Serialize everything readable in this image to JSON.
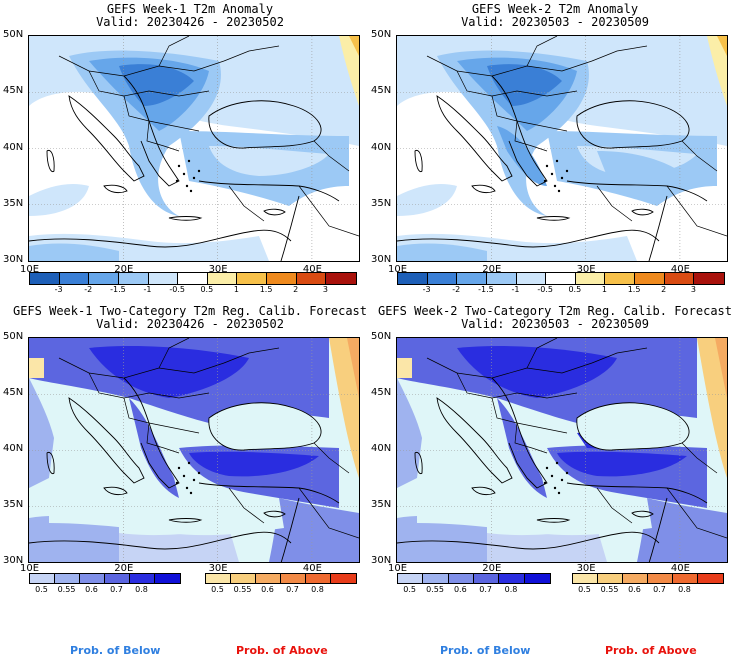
{
  "panels": [
    {
      "title": "GEFS Week-1 T2m Anomaly",
      "valid": "Valid: 20230426 - 20230502",
      "kind": "anomaly"
    },
    {
      "title": "GEFS Week-2 T2m Anomaly",
      "valid": "Valid: 20230503 - 20230509",
      "kind": "anomaly"
    },
    {
      "title": "GEFS Week-1 Two-Category T2m Reg. Calib. Forecast",
      "valid": "Valid: 20230426 - 20230502",
      "kind": "prob"
    },
    {
      "title": "GEFS Week-2 Two-Category T2m Reg. Calib. Forecast",
      "valid": "Valid: 20230503 - 20230509",
      "kind": "prob"
    }
  ],
  "lat_labels": [
    "50N",
    "45N",
    "40N",
    "35N",
    "30N"
  ],
  "lon_labels": [
    "10E",
    "20E",
    "30E",
    "40E"
  ],
  "anomaly_scale": {
    "ticks": [
      "-3",
      "-2",
      "-1.5",
      "-1",
      "-0.5",
      "0.5",
      "1",
      "1.5",
      "2",
      "3"
    ],
    "colors": [
      "#1d5fb8",
      "#3a7fd6",
      "#66a6ea",
      "#9cc9f5",
      "#cfe6fb",
      "#ffffff",
      "#fbeea8",
      "#f7c14a",
      "#ef8a1e",
      "#d94b12",
      "#a9120c"
    ]
  },
  "below_scale": {
    "ticks": [
      "0.5",
      "0.55",
      "0.6",
      "0.7",
      "0.8"
    ],
    "colors": [
      "#c6d4f5",
      "#9fb3ef",
      "#7f8fe8",
      "#5c66e0",
      "#2a2de0",
      "#1010d8"
    ]
  },
  "above_scale": {
    "ticks": [
      "0.5",
      "0.55",
      "0.6",
      "0.7",
      "0.8"
    ],
    "colors": [
      "#fbe6a8",
      "#f8cf7e",
      "#f5ab62",
      "#f28a46",
      "#ef6a30",
      "#e83c1a"
    ]
  },
  "prob_labels": {
    "below": "Prob. of Below",
    "above": "Prob. of Above"
  },
  "colors": {
    "below_label": "#2f7fe0",
    "above_label": "#e8120c",
    "sea_prob": "#dff6f8"
  }
}
